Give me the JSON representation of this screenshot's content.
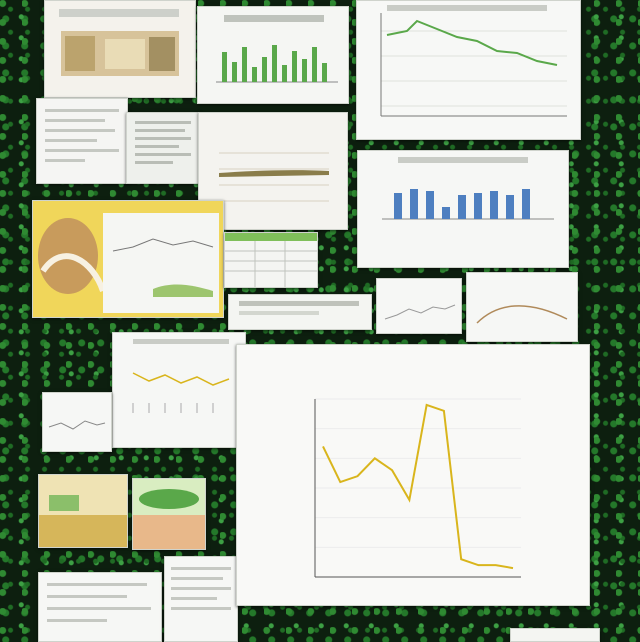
{
  "canvas": {
    "background": "#0d1f0f"
  },
  "main_chart": {
    "title": "",
    "chart_data": {
      "type": "line",
      "x": [
        1,
        2,
        3,
        4,
        5,
        6,
        7,
        8,
        9,
        10,
        11,
        12
      ],
      "values": [
        22,
        16,
        17,
        20,
        18,
        13,
        29,
        28,
        3,
        2,
        2,
        1.5
      ],
      "ylim": [
        0,
        30
      ],
      "color": "#d9b51c"
    }
  },
  "colors": {
    "green_line": "#5aa84a",
    "blue_bars": "#4e7fc0",
    "yellow_line": "#d9b51c"
  }
}
